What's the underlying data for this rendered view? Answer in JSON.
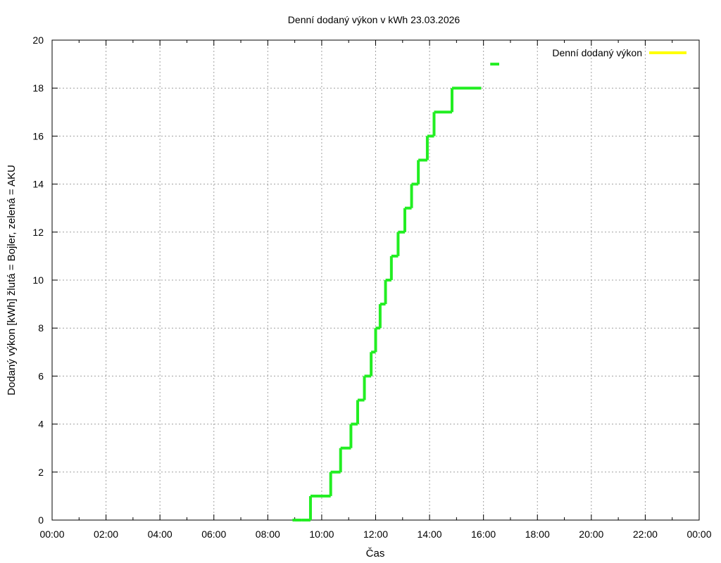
{
  "chart_data": {
    "type": "line",
    "title": "Denní dodaný výkon v kWh 23.03.2026",
    "xlabel": "Čas",
    "ylabel": "Dodaný výkon [kWh]  žlutá = Bojler, zelená = AKU",
    "xlim": [
      0,
      24
    ],
    "ylim": [
      0,
      20
    ],
    "x_ticks": [
      "00:00",
      "02:00",
      "04:00",
      "06:00",
      "08:00",
      "10:00",
      "12:00",
      "14:00",
      "16:00",
      "18:00",
      "20:00",
      "22:00",
      "00:00"
    ],
    "y_ticks": [
      "0",
      "2",
      "4",
      "6",
      "8",
      "10",
      "12",
      "14",
      "16",
      "18",
      "20"
    ],
    "grid": true,
    "legend_position": "top-right",
    "colors": {
      "yellow": "#ffff00",
      "green": "#22ee22"
    },
    "series": [
      {
        "name": "Denní dodaný výkon",
        "color": "#ffff00",
        "points": []
      },
      {
        "name": "",
        "color": "#22ee22",
        "points": [
          [
            "08:55",
            0
          ],
          [
            "09:00",
            0
          ],
          [
            "09:15",
            0
          ],
          [
            "09:35",
            0
          ],
          [
            "09:35",
            1
          ],
          [
            "10:20",
            1
          ],
          [
            "10:20",
            2
          ],
          [
            "10:42",
            2
          ],
          [
            "10:42",
            3
          ],
          [
            "11:05",
            3
          ],
          [
            "11:05",
            4
          ],
          [
            "11:20",
            4
          ],
          [
            "11:20",
            5
          ],
          [
            "11:35",
            5
          ],
          [
            "11:35",
            6
          ],
          [
            "11:50",
            6
          ],
          [
            "11:50",
            7
          ],
          [
            "12:00",
            7
          ],
          [
            "12:00",
            8
          ],
          [
            "12:10",
            8
          ],
          [
            "12:10",
            9
          ],
          [
            "12:22",
            9
          ],
          [
            "12:22",
            10
          ],
          [
            "12:35",
            10
          ],
          [
            "12:35",
            11
          ],
          [
            "12:50",
            11
          ],
          [
            "12:50",
            12
          ],
          [
            "13:05",
            12
          ],
          [
            "13:05",
            13
          ],
          [
            "13:20",
            13
          ],
          [
            "13:20",
            14
          ],
          [
            "13:35",
            14
          ],
          [
            "13:35",
            15
          ],
          [
            "13:55",
            15
          ],
          [
            "13:55",
            16
          ],
          [
            "14:10",
            16
          ],
          [
            "14:10",
            17
          ],
          [
            "14:50",
            17
          ],
          [
            "14:50",
            18
          ],
          [
            "15:55",
            18
          ],
          [
            "16:15",
            19
          ],
          [
            "16:35",
            19
          ]
        ]
      }
    ]
  }
}
